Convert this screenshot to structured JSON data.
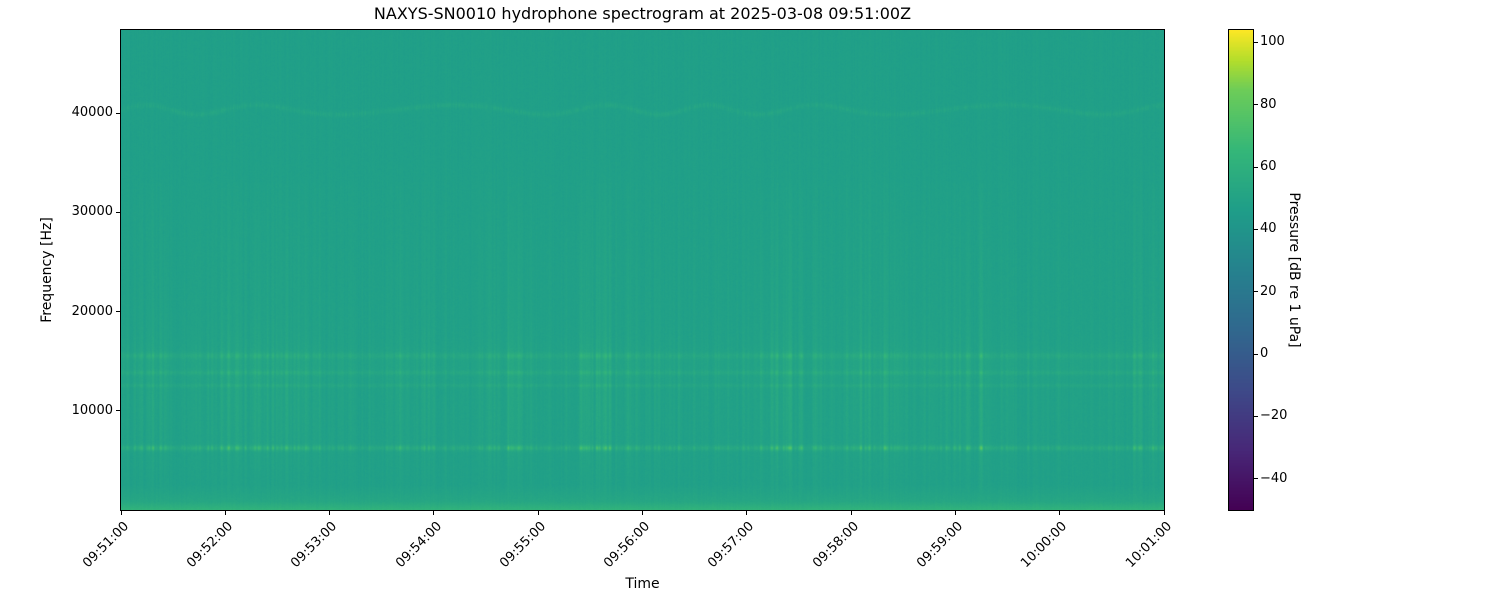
{
  "chart_data": {
    "type": "heatmap",
    "title": "NAXYS-SN0010 hydrophone spectrogram at 2025-03-08 09:51:00Z",
    "xlabel": "Time",
    "ylabel": "Frequency [Hz]",
    "x_ticks": [
      {
        "seconds": 0,
        "label": "09:51:00"
      },
      {
        "seconds": 60,
        "label": "09:52:00"
      },
      {
        "seconds": 120,
        "label": "09:53:00"
      },
      {
        "seconds": 180,
        "label": "09:54:00"
      },
      {
        "seconds": 240,
        "label": "09:55:00"
      },
      {
        "seconds": 300,
        "label": "09:56:00"
      },
      {
        "seconds": 360,
        "label": "09:57:00"
      },
      {
        "seconds": 420,
        "label": "09:58:00"
      },
      {
        "seconds": 480,
        "label": "09:59:00"
      },
      {
        "seconds": 540,
        "label": "10:00:00"
      },
      {
        "seconds": 600,
        "label": "10:01:00"
      }
    ],
    "x_range_seconds": [
      0,
      600
    ],
    "y_ticks": [
      {
        "value": 10000,
        "label": "10000"
      },
      {
        "value": 20000,
        "label": "20000"
      },
      {
        "value": 30000,
        "label": "30000"
      },
      {
        "value": 40000,
        "label": "40000"
      }
    ],
    "y_range_hz": [
      0,
      48400
    ],
    "colorbar": {
      "label": "Pressure [dB re 1 uPa]",
      "colormap": "viridis",
      "vmin": -50,
      "vmax": 104,
      "ticks": [
        {
          "value": 100,
          "label": "100"
        },
        {
          "value": 80,
          "label": "80"
        },
        {
          "value": 60,
          "label": "60"
        },
        {
          "value": 40,
          "label": "40"
        },
        {
          "value": 20,
          "label": "20"
        },
        {
          "value": 0,
          "label": "0"
        },
        {
          "value": -20,
          "label": "−20"
        },
        {
          "value": -40,
          "label": "−40"
        }
      ]
    },
    "viridis_stops": [
      [
        0.0,
        68,
        1,
        84
      ],
      [
        0.125,
        72,
        40,
        120
      ],
      [
        0.25,
        62,
        74,
        137
      ],
      [
        0.375,
        49,
        104,
        142
      ],
      [
        0.5,
        38,
        130,
        142
      ],
      [
        0.625,
        31,
        158,
        137
      ],
      [
        0.75,
        53,
        183,
        121
      ],
      [
        0.875,
        109,
        205,
        89
      ],
      [
        0.9375,
        180,
        222,
        44
      ],
      [
        1.0,
        253,
        231,
        37
      ]
    ],
    "background_level_db": 47.5,
    "pixel_noise_db": 2.2,
    "seed": 20250308,
    "features": {
      "tonal_bands": [
        {
          "freq_hz": 6300,
          "bandwidth_hz": 260,
          "base_gain_db": 4,
          "burst_gain_db": 30
        },
        {
          "freq_hz": 12600,
          "bandwidth_hz": 180,
          "base_gain_db": 2.5,
          "burst_gain_db": 6
        },
        {
          "freq_hz": 13900,
          "bandwidth_hz": 220,
          "base_gain_db": 3,
          "burst_gain_db": 8
        },
        {
          "freq_hz": 15600,
          "bandwidth_hz": 300,
          "base_gain_db": 3,
          "burst_gain_db": 12
        },
        {
          "freq_hz": 14700,
          "bandwidth_hz": 1800,
          "base_gain_db": 1,
          "burst_gain_db": 2
        }
      ],
      "wavy_band": {
        "freq_hz": 40400,
        "wobble_hz": 480,
        "bandwidth_hz": 260,
        "min_gain_db": 1.5,
        "max_gain_db": 5
      },
      "low_freq_rise": {
        "rise_below_hz": 2600,
        "gain_db": 8,
        "extra_below_hz": 900,
        "extra_gain_db": 8
      },
      "broadband_bursts": {
        "primary_center_hz": 10500,
        "primary_sigma_hz": 7500,
        "secondary_center_hz": 23500,
        "secondary_sigma_hz": 9000,
        "max_gain_db": 9.5
      }
    }
  }
}
